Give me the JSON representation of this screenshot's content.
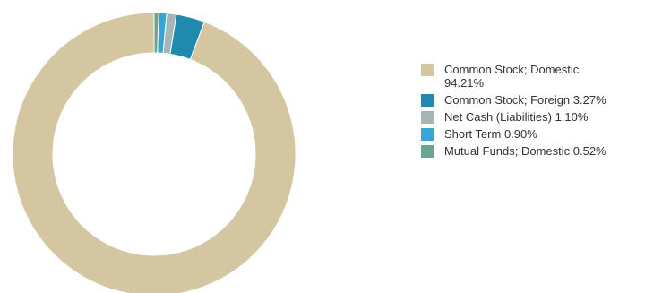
{
  "chart_data": {
    "type": "pie",
    "donut": true,
    "legend_position": "right",
    "slices": [
      {
        "label": "Common Stock; Domestic",
        "value": 94.21,
        "display": "94.21%",
        "color": "#d4c6a0"
      },
      {
        "label": "Common Stock; Foreign",
        "value": 3.27,
        "display": "3.27%",
        "color": "#1f8aae"
      },
      {
        "label": "Net Cash (Liabilities)",
        "value": 1.1,
        "display": "1.10%",
        "color": "#a6b6b6"
      },
      {
        "label": "Short Term",
        "value": 0.9,
        "display": "0.90%",
        "color": "#35a6d6"
      },
      {
        "label": "Mutual Funds; Domestic",
        "value": 0.52,
        "display": "0.52%",
        "color": "#6aa58e"
      }
    ]
  }
}
